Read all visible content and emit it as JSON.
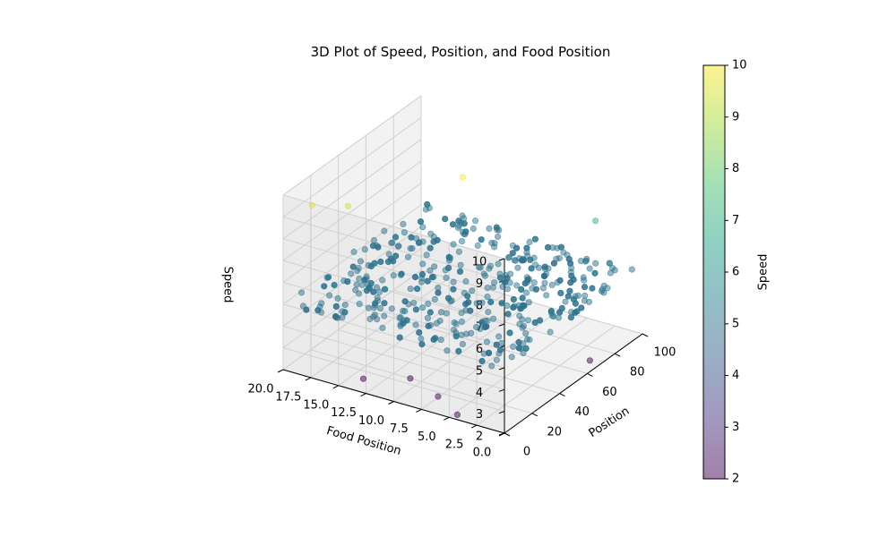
{
  "chart_data": {
    "type": "scatter",
    "title": "3D Plot of Speed, Position, and Food Position",
    "xlabel": "Position",
    "ylabel": "Food Position",
    "zlabel": "Speed",
    "xlim": [
      0,
      100
    ],
    "ylim": [
      0,
      20
    ],
    "zlim": [
      2,
      10
    ],
    "grid": true,
    "x_ticks": [
      "0",
      "20",
      "40",
      "60",
      "80",
      "100"
    ],
    "y_ticks": [
      "0.0",
      "2.5",
      "5.0",
      "7.5",
      "10.0",
      "12.5",
      "15.0",
      "17.5",
      "20.0"
    ],
    "z_ticks": [
      "2",
      "3",
      "4",
      "5",
      "6",
      "7",
      "8",
      "9",
      "10"
    ],
    "colorbar": {
      "label": "Speed",
      "min": 2,
      "max": 10,
      "ticks": [
        "2",
        "3",
        "4",
        "5",
        "6",
        "7",
        "8",
        "9",
        "10"
      ],
      "colormap": "viridis",
      "colors": [
        "#440154",
        "#46327e",
        "#365c8d",
        "#277f8e",
        "#1fa187",
        "#4ac16d",
        "#a0da39",
        "#fde725"
      ]
    },
    "marker_alpha": 0.5,
    "outliers": [
      {
        "x": 50,
        "y": 10,
        "z": 10
      },
      {
        "x": 5,
        "y": 18,
        "z": 9.6
      },
      {
        "x": 15,
        "y": 16,
        "z": 9.4
      },
      {
        "x": 90,
        "y": 3,
        "z": 7.2
      },
      {
        "x": 10,
        "y": 14,
        "z": 2
      },
      {
        "x": 20,
        "y": 11,
        "z": 2
      },
      {
        "x": 70,
        "y": 1,
        "z": 2
      },
      {
        "x": 8,
        "y": 7,
        "z": 2.3
      },
      {
        "x": 2,
        "y": 4.5,
        "z": 2.1
      }
    ],
    "bulk_series": {
      "speed_center": 5,
      "speed_spread": 0.2,
      "x_range": [
        0,
        100
      ],
      "y_range": [
        0,
        20
      ],
      "count": 400
    }
  }
}
